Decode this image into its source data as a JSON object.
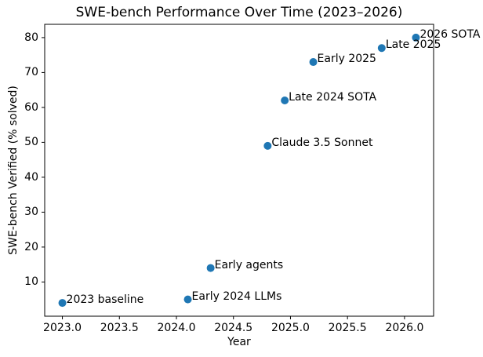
{
  "chart_data": {
    "type": "scatter",
    "title": "SWE-bench Performance Over Time (2023–2026)",
    "xlabel": "Year",
    "ylabel": "SWE-bench Verified (% solved)",
    "xlim": [
      2022.845,
      2026.255
    ],
    "ylim": [
      0.2,
      83.8
    ],
    "grid": false,
    "legend": "none",
    "point_color": "#1f77b4",
    "axis_color": "#000000",
    "background_color": "#ffffff",
    "x_ticks": [
      2023.0,
      2023.5,
      2024.0,
      2024.5,
      2025.0,
      2025.5,
      2026.0
    ],
    "x_tick_labels": [
      "2023.0",
      "2023.5",
      "2024.0",
      "2024.5",
      "2025.0",
      "2025.5",
      "2026.0"
    ],
    "y_ticks": [
      10,
      20,
      30,
      40,
      50,
      60,
      70,
      80
    ],
    "y_tick_labels": [
      "10",
      "20",
      "30",
      "40",
      "50",
      "60",
      "70",
      "80"
    ],
    "points": [
      {
        "x": 2023.0,
        "y": 4,
        "label": "2023 baseline"
      },
      {
        "x": 2024.1,
        "y": 5,
        "label": "Early 2024 LLMs"
      },
      {
        "x": 2024.3,
        "y": 14,
        "label": "Early agents"
      },
      {
        "x": 2024.8,
        "y": 49,
        "label": "Claude 3.5 Sonnet"
      },
      {
        "x": 2024.95,
        "y": 62,
        "label": "Late 2024 SOTA"
      },
      {
        "x": 2025.2,
        "y": 73,
        "label": "Early 2025"
      },
      {
        "x": 2025.8,
        "y": 77,
        "label": "Late 2025"
      },
      {
        "x": 2026.1,
        "y": 80,
        "label": "2026 SOTA"
      }
    ]
  }
}
